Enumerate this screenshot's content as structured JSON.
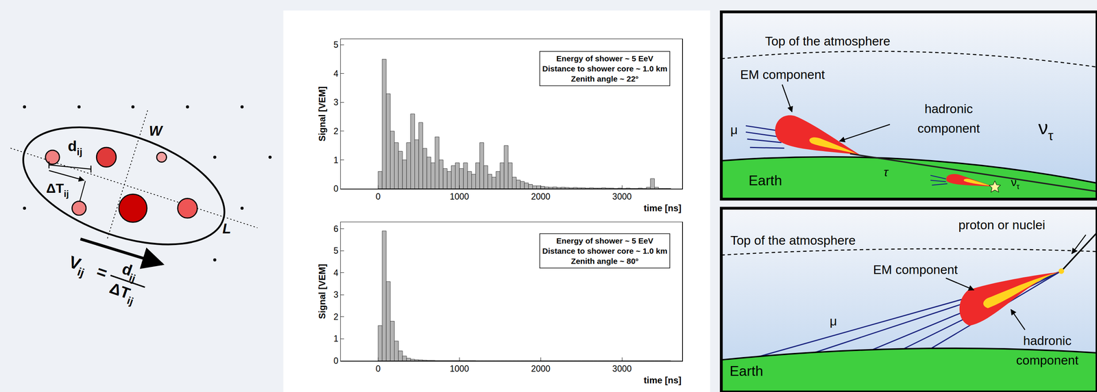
{
  "chart_data": [
    {
      "type": "histogram",
      "y_label": "Signal [VEM]",
      "x_label": "time [ns]",
      "annotations": [
        "Energy of shower ~ 5 EeV",
        "Distance to shower core ~ 1.0 km",
        "Zenith angle ~ 22°"
      ],
      "color": "#b3b3b3",
      "bins": [
        0,
        50,
        100,
        150,
        200,
        250,
        300,
        350,
        400,
        450,
        500,
        550,
        600,
        650,
        700,
        750,
        800,
        850,
        900,
        950,
        1000,
        1050,
        1100,
        1150,
        1200,
        1250,
        1300,
        1350,
        1400,
        1450,
        1500,
        1550,
        1600,
        1650,
        1700,
        1750,
        1800,
        1850,
        1900,
        1950,
        2000,
        2050,
        2100,
        2150,
        2200,
        2250,
        2300,
        2350,
        2400,
        2450,
        2500,
        2550,
        2600,
        2650,
        2700,
        2750,
        2800,
        2850,
        2900,
        2950,
        3000,
        3050,
        3100,
        3150,
        3200,
        3250,
        3300,
        3350,
        3400,
        3450,
        3500,
        3550,
        3600
      ],
      "values": [
        0.6,
        4.5,
        3.3,
        2.0,
        1.6,
        1.3,
        1.0,
        1.6,
        2.6,
        1.7,
        2.3,
        1.4,
        1.1,
        0.9,
        1.8,
        1.0,
        0.7,
        0.6,
        0.8,
        0.9,
        0.7,
        0.9,
        0.6,
        0.5,
        0.9,
        1.6,
        0.8,
        0.5,
        0.4,
        0.6,
        0.9,
        1.5,
        0.9,
        0.4,
        0.3,
        0.25,
        0.2,
        0.15,
        0.1,
        0.1,
        0.08,
        0.06,
        0.05,
        0.06,
        0.04,
        0.05,
        0.04,
        0.03,
        0.04,
        0.03,
        0.03,
        0.02,
        0.03,
        0.02,
        0.02,
        0.03,
        0.02,
        0.02,
        0.01,
        0.02,
        0.01,
        0.02,
        0.01,
        0.01,
        0.02,
        0.01,
        0.05,
        0.35,
        0.05,
        0.01,
        0.01,
        0.01
      ],
      "xlim": [
        -460,
        3740
      ],
      "ylim": [
        0,
        5.2
      ],
      "xticks": [
        0,
        1000,
        2000,
        3000
      ],
      "yticks": [
        0,
        1,
        2,
        3,
        4,
        5
      ],
      "grid": false
    },
    {
      "type": "histogram",
      "y_label": "Signal [VEM]",
      "x_label": "time [ns]",
      "annotations": [
        "Energy of shower ~ 5 EeV",
        "Distance to shower core ~ 1.0 km",
        "Zenith angle ~ 80°"
      ],
      "color": "#b3b3b3",
      "bins": [
        0,
        50,
        100,
        150,
        200,
        250,
        300,
        350,
        400,
        450,
        500,
        550,
        600,
        650,
        700,
        750,
        800,
        850,
        900,
        950,
        1000,
        1050,
        1100,
        1150,
        1200,
        1250,
        1300,
        1350,
        1400,
        1450,
        1500,
        1550,
        1600,
        1650,
        1700,
        1750,
        1800,
        1850,
        1900,
        1950,
        2000,
        2050,
        2100,
        2150,
        2200,
        2250,
        2300,
        2350,
        2400,
        2450,
        2500,
        2550,
        2600,
        2650,
        2700,
        2750,
        2800,
        2850,
        2900,
        2950,
        3000,
        3050,
        3100,
        3150,
        3200,
        3250,
        3300,
        3350,
        3400,
        3450,
        3500,
        3550,
        3600
      ],
      "values": [
        1.6,
        5.9,
        3.6,
        1.8,
        0.9,
        0.45,
        0.22,
        0.12,
        0.07,
        0.05,
        0.04,
        0.03,
        0.02,
        0.02,
        0.01,
        0.01,
        0.01,
        0.01,
        0.01,
        0.01,
        0.01,
        0.01,
        0.01,
        0.01,
        0,
        0,
        0,
        0,
        0,
        0,
        0,
        0,
        0,
        0,
        0,
        0,
        0,
        0,
        0,
        0,
        0,
        0,
        0,
        0,
        0,
        0,
        0,
        0,
        0,
        0,
        0,
        0,
        0,
        0,
        0,
        0,
        0,
        0,
        0,
        0,
        0,
        0,
        0,
        0,
        0,
        0,
        0,
        0,
        0,
        0,
        0,
        0
      ],
      "xlim": [
        -460,
        3740
      ],
      "ylim": [
        0,
        6.3
      ],
      "xticks": [
        0,
        1000,
        2000,
        3000
      ],
      "yticks": [
        0,
        1,
        2,
        3,
        4,
        5,
        6
      ],
      "grid": false
    }
  ],
  "diagram": {
    "footprint": {
      "width_label": "W",
      "length_label": "L",
      "distance": {
        "symbol": "d",
        "subscript": "ij"
      },
      "time_difference": {
        "symbol": "ΔT",
        "subscript": "ij"
      },
      "velocity_formula": {
        "lhs": {
          "symbol": "V",
          "subscript": "ij"
        },
        "equals": "=",
        "numerator": {
          "symbol": "d",
          "subscript": "ij"
        },
        "denominator": {
          "symbol": "ΔT",
          "subscript": "ij"
        }
      }
    },
    "neutrino_shower": {
      "atmosphere_label": "Top of the atmosphere",
      "em_label": "EM component",
      "hadronic_label": "hadronic component",
      "muon_label": "μ",
      "neutrino_label": {
        "symbol": "ν",
        "subscript": "τ"
      },
      "earth_label": "Earth",
      "tau_label": "τ",
      "small_neutrino_label": {
        "symbol": "ν",
        "subscript": "τ"
      }
    },
    "hadron_shower": {
      "primary_label": "proton or nuclei",
      "atmosphere_label": "Top of the atmosphere",
      "em_label": "EM component",
      "muon_label": "μ",
      "hadronic_label": "hadronic component",
      "earth_label": "Earth"
    }
  }
}
